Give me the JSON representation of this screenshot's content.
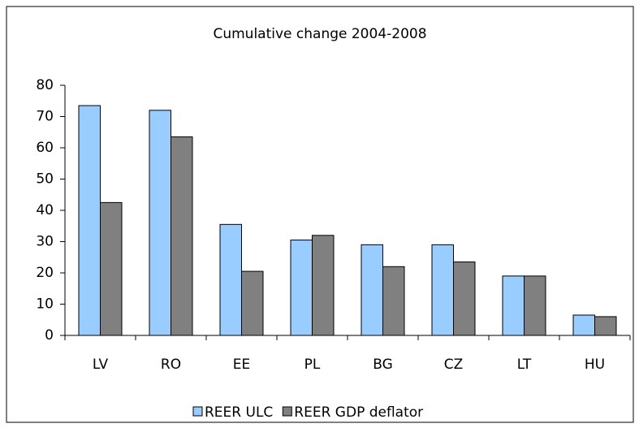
{
  "chart_data": {
    "type": "bar",
    "title": "Cumulative change 2004-2008",
    "categories": [
      "LV",
      "RO",
      "EE",
      "PL",
      "BG",
      "CZ",
      "LT",
      "HU"
    ],
    "series": [
      {
        "name": "REER ULC",
        "color": "#99ccff",
        "values": [
          73.5,
          72,
          35.5,
          30.5,
          29,
          29,
          19,
          6.5
        ]
      },
      {
        "name": "REER GDP deflator",
        "color": "#808080",
        "values": [
          42.5,
          63.5,
          20.5,
          32,
          22,
          23.5,
          19,
          6
        ]
      }
    ],
    "ylim": [
      0,
      80
    ],
    "yticks": [
      0,
      10,
      20,
      30,
      40,
      50,
      60,
      70,
      80
    ],
    "legend": "bottom"
  }
}
